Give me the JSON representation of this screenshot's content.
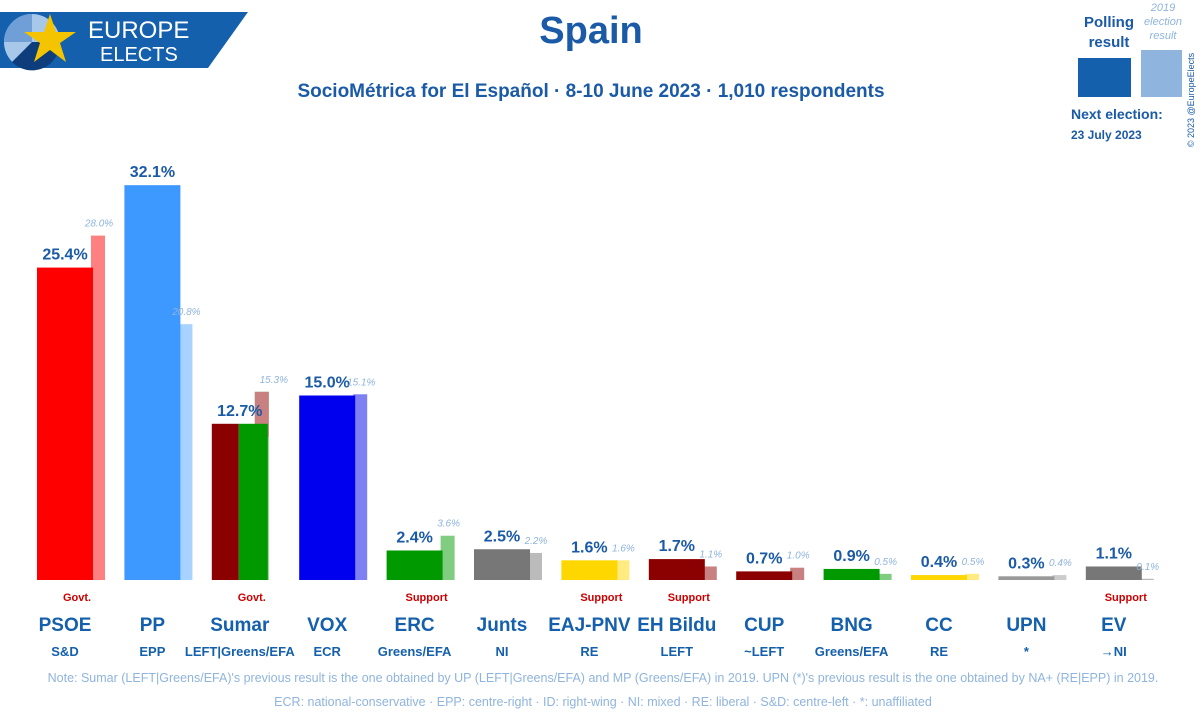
{
  "brand": {
    "line1": "EUROPE",
    "line2": "ELECTS"
  },
  "colors": {
    "title": "#1a5aa6",
    "accent": "#1560ac",
    "muted": "#8fb4dd",
    "support": "#cc0000"
  },
  "legend": {
    "polling_line1": "Polling",
    "polling_line2": "result",
    "election_line1": "2019",
    "election_line2": "election",
    "election_line3": "result",
    "next_label": "Next election:",
    "next_date": "23 July 2023",
    "copyright": "© 2023 @EuropeElects"
  },
  "chart_data": {
    "type": "bar",
    "title": "Spain",
    "subtitle": "SocioMétrica for El Español · 8-10 June 2023 · 1,010 respondents",
    "ylim": [
      0,
      35
    ],
    "parties": [
      {
        "name": "PSOE",
        "group": "S&D",
        "poll": 25.4,
        "poll_label": "25.4%",
        "prev": 28.0,
        "prev_label": "28.0%",
        "status": "Govt.",
        "color": "#ff0000",
        "prev_color": "#ff8080"
      },
      {
        "name": "PP",
        "group": "EPP",
        "poll": 32.1,
        "poll_label": "32.1%",
        "prev": 20.8,
        "prev_label": "20.8%",
        "status": "",
        "color": "#3d99ff",
        "prev_color": "#a8d2ff"
      },
      {
        "name": "Sumar",
        "group": "LEFT|Greens/EFA",
        "poll": 12.7,
        "poll_label": "12.7%",
        "prev": 15.3,
        "prev_label": "15.3%",
        "status": "Govt.",
        "color": "#009900",
        "prev_color": "#80cc80",
        "poll_color2": "#8b0000",
        "prev_color2": "#c98080"
      },
      {
        "name": "VOX",
        "group": "ECR",
        "poll": 15.0,
        "poll_label": "15.0%",
        "prev": 15.1,
        "prev_label": "15.1%",
        "status": "",
        "color": "#0000ee",
        "prev_color": "#8080f5"
      },
      {
        "name": "ERC",
        "group": "Greens/EFA",
        "poll": 2.4,
        "poll_label": "2.4%",
        "prev": 3.6,
        "prev_label": "3.6%",
        "status": "Support",
        "color": "#009900",
        "prev_color": "#80cc80"
      },
      {
        "name": "Junts",
        "group": "NI",
        "poll": 2.5,
        "poll_label": "2.5%",
        "prev": 2.2,
        "prev_label": "2.2%",
        "status": "",
        "color": "#777777",
        "prev_color": "#bbbbbb"
      },
      {
        "name": "EAJ-PNV",
        "group": "RE",
        "poll": 1.6,
        "poll_label": "1.6%",
        "prev": 1.6,
        "prev_label": "1.6%",
        "status": "Support",
        "color": "#ffd700",
        "prev_color": "#ffeb80"
      },
      {
        "name": "EH Bildu",
        "group": "LEFT",
        "poll": 1.7,
        "poll_label": "1.7%",
        "prev": 1.1,
        "prev_label": "1.1%",
        "status": "Support",
        "color": "#8b0000",
        "prev_color": "#c98080"
      },
      {
        "name": "CUP",
        "group": "~LEFT",
        "poll": 0.7,
        "poll_label": "0.7%",
        "prev": 1.0,
        "prev_label": "1.0%",
        "status": "",
        "color": "#8b0000",
        "prev_color": "#c98080"
      },
      {
        "name": "BNG",
        "group": "Greens/EFA",
        "poll": 0.9,
        "poll_label": "0.9%",
        "prev": 0.5,
        "prev_label": "0.5%",
        "status": "",
        "color": "#009900",
        "prev_color": "#80cc80"
      },
      {
        "name": "CC",
        "group": "RE",
        "poll": 0.4,
        "poll_label": "0.4%",
        "prev": 0.5,
        "prev_label": "0.5%",
        "status": "",
        "color": "#ffd700",
        "prev_color": "#ffeb80"
      },
      {
        "name": "UPN",
        "group": "*",
        "poll": 0.3,
        "poll_label": "0.3%",
        "prev": 0.4,
        "prev_label": "0.4%",
        "status": "",
        "color": "#999999",
        "prev_color": "#cccccc"
      },
      {
        "name": "EV",
        "group": "→NI",
        "poll": 1.1,
        "poll_label": "1.1%",
        "prev": 0.1,
        "prev_label": "0.1%",
        "status": "Support",
        "color": "#777777",
        "prev_color": "#bbbbbb"
      }
    ],
    "note": "Note: Sumar (LEFT|Greens/EFA)'s previous result is the one obtained by UP (LEFT|Greens/EFA) and MP (Greens/EFA) in 2019. UPN (*)'s previous result is the one obtained by NA+ (RE|EPP) in 2019.",
    "footer": "ECR: national-conservative · EPP: centre-right · ID: right-wing · NI: mixed · RE: liberal · S&D: centre-left · *: unaffiliated"
  }
}
